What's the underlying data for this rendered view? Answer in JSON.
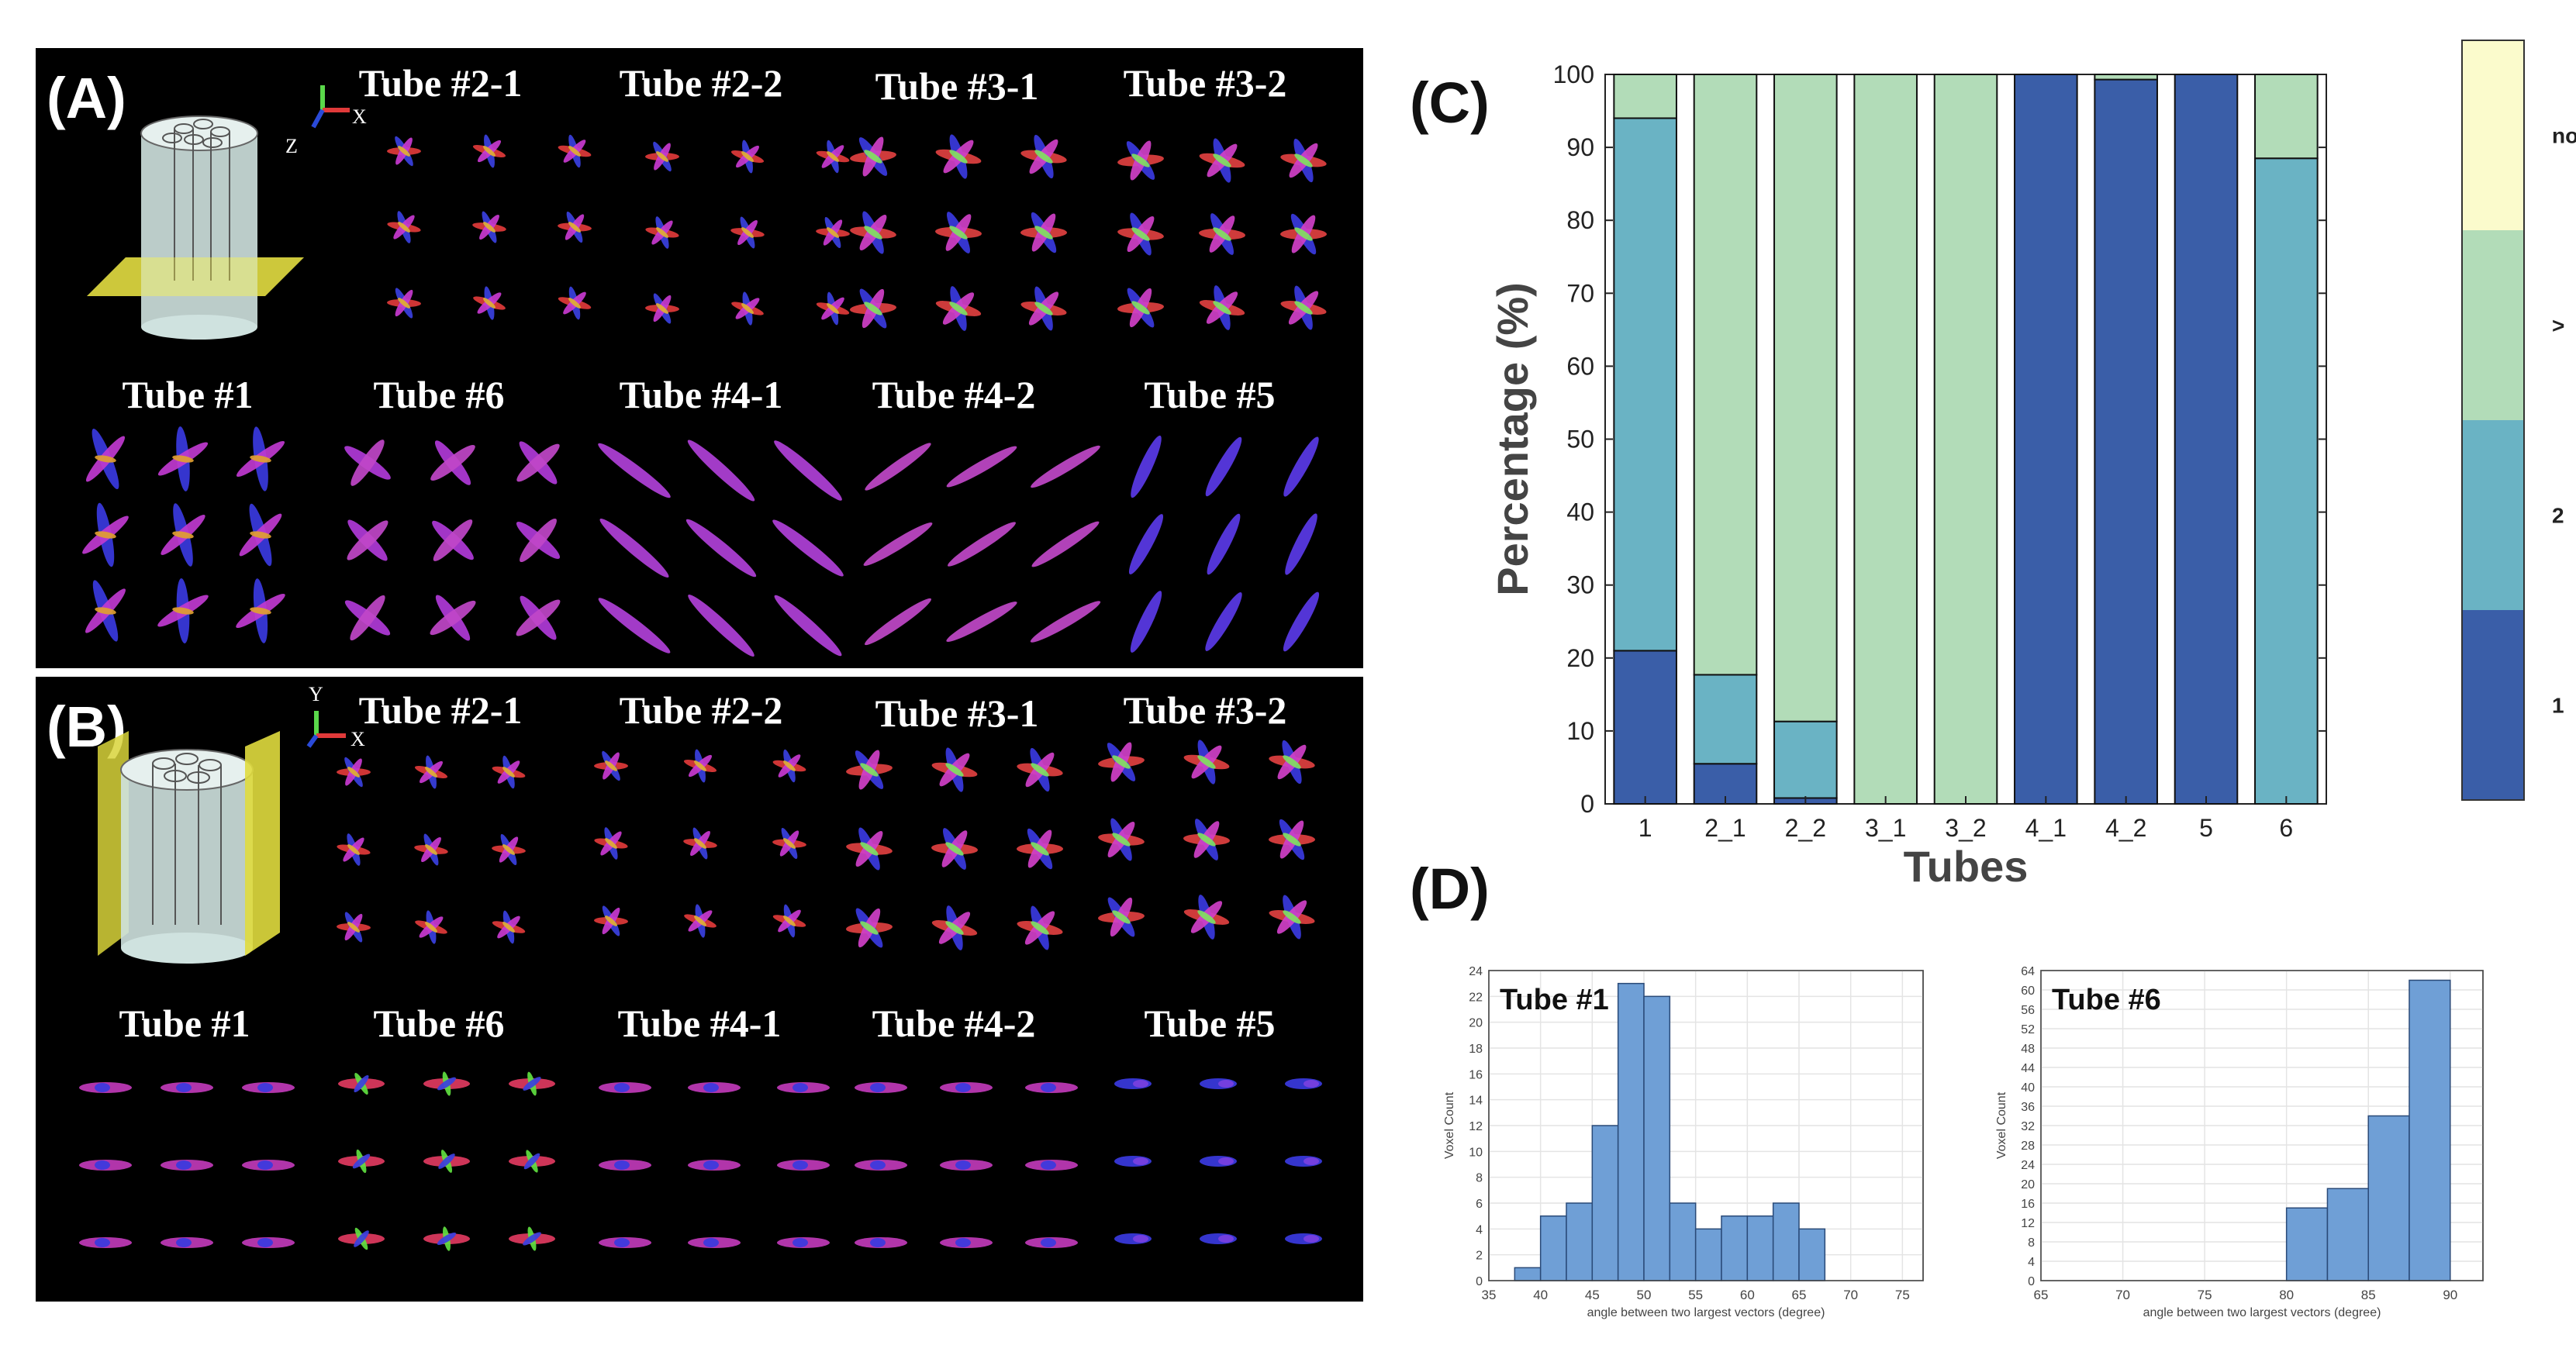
{
  "panels": {
    "A": {
      "label": "(A)",
      "axis": {
        "x": "X",
        "y": "Z"
      },
      "row1_titles": [
        "Tube #2-1",
        "Tube #2-2",
        "Tube #3-1",
        "Tube #3-2"
      ],
      "row2_titles": [
        "Tube #1",
        "Tube #6",
        "Tube #4-1",
        "Tube #4-2",
        "Tube #5"
      ]
    },
    "B": {
      "label": "(B)",
      "axis": {
        "x": "X",
        "y": "Y"
      },
      "row1_titles": [
        "Tube #2-1",
        "Tube #2-2",
        "Tube #3-1",
        "Tube #3-2"
      ],
      "row2_titles": [
        "Tube #1",
        "Tube #6",
        "Tube #4-1",
        "Tube #4-2",
        "Tube #5"
      ]
    },
    "C": {
      "label": "(C)"
    },
    "D": {
      "label": "(D)"
    }
  },
  "chart_data": [
    {
      "id": "C",
      "type": "bar",
      "stacked": true,
      "xlabel": "Tubes",
      "ylabel": "Percentage (%)",
      "ylim": [
        0,
        100
      ],
      "yticks": [
        0,
        10,
        20,
        30,
        40,
        50,
        60,
        70,
        80,
        90,
        100
      ],
      "categories": [
        "1",
        "2_1",
        "2_2",
        "3_1",
        "3_2",
        "4_1",
        "4_2",
        "5",
        "6"
      ],
      "series": [
        {
          "name": "1",
          "color": "#3a5ea8",
          "values": [
            21,
            5.5,
            0.8,
            0,
            0,
            100,
            99.3,
            100,
            0
          ]
        },
        {
          "name": "2",
          "color": "#6ab3c4",
          "values": [
            73,
            12.2,
            10.5,
            0,
            0,
            0,
            0,
            0,
            88.5
          ]
        },
        {
          "name": ">",
          "color": "#b2dcb8",
          "values": [
            6,
            82.3,
            88.7,
            100,
            100,
            0,
            0.7,
            0,
            11.5
          ]
        },
        {
          "name": "none",
          "color": "#fbfbcc",
          "values": [
            0,
            0,
            0,
            0,
            0,
            0,
            0,
            0,
            0
          ]
        }
      ],
      "colorbar_labels": [
        "1",
        "2",
        ">",
        "none"
      ]
    },
    {
      "id": "D1",
      "type": "bar",
      "title": "Tube #1",
      "xlabel": "angle between two largest vectors (degree)",
      "ylabel": "Voxel Count",
      "xlim": [
        35,
        77
      ],
      "xticks": [
        35,
        40,
        45,
        50,
        55,
        60,
        65,
        70,
        75
      ],
      "ylim": [
        0,
        24
      ],
      "yticks": [
        0,
        2,
        4,
        6,
        8,
        10,
        12,
        14,
        16,
        18,
        20,
        22,
        24
      ],
      "bin_width": 2.5,
      "bin_starts": [
        37.5,
        40,
        42.5,
        45,
        47.5,
        50,
        52.5,
        55,
        57.5,
        60,
        62.5,
        65
      ],
      "values": [
        1,
        5,
        6,
        12,
        23,
        22,
        6,
        4,
        5,
        5,
        6,
        4
      ],
      "color": "#6f9fd6"
    },
    {
      "id": "D2",
      "type": "bar",
      "title": "Tube #6",
      "xlabel": "angle between two largest vectors (degree)",
      "ylabel": "Voxel Count",
      "xlim": [
        65,
        92
      ],
      "xticks": [
        65,
        70,
        75,
        80,
        85,
        90
      ],
      "ylim": [
        0,
        64
      ],
      "yticks": [
        0,
        4,
        8,
        12,
        16,
        20,
        24,
        28,
        32,
        36,
        40,
        44,
        48,
        52,
        56,
        60,
        64
      ],
      "bin_width": 2.5,
      "bin_starts": [
        80,
        82.5,
        85,
        87.5
      ],
      "values": [
        15,
        19,
        34,
        62
      ],
      "color": "#6f9fd6"
    }
  ]
}
